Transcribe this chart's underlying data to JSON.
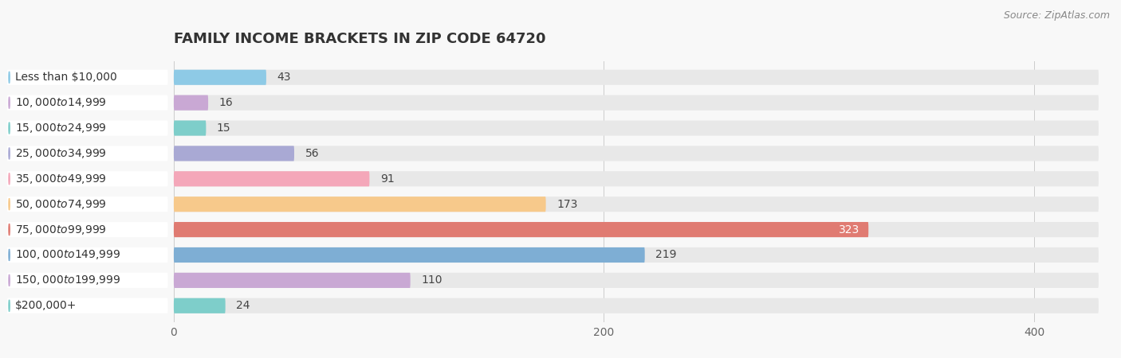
{
  "title": "Family Income Brackets in Zip Code 64720",
  "title_upper": "FAMILY INCOME BRACKETS IN ZIP CODE 64720",
  "source": "Source: ZipAtlas.com",
  "categories": [
    "Less than $10,000",
    "$10,000 to $14,999",
    "$15,000 to $24,999",
    "$25,000 to $34,999",
    "$35,000 to $49,999",
    "$50,000 to $74,999",
    "$75,000 to $99,999",
    "$100,000 to $149,999",
    "$150,000 to $199,999",
    "$200,000+"
  ],
  "values": [
    43,
    16,
    15,
    56,
    91,
    173,
    323,
    219,
    110,
    24
  ],
  "bar_colors": [
    "#8ecae6",
    "#c9a8d4",
    "#7ececa",
    "#a9a9d4",
    "#f4a7b9",
    "#f7c98b",
    "#e07b72",
    "#7eaed4",
    "#c9a8d4",
    "#7ececa"
  ],
  "background_color": "#f8f8f8",
  "row_bg_color": "#e8e8e8",
  "label_bg_color": "#ffffff",
  "xlim_max": 430,
  "x_tick_vals": [
    0,
    200,
    400
  ],
  "label_inside_threshold": 290,
  "title_fontsize": 13,
  "tick_fontsize": 10,
  "value_fontsize": 10,
  "category_fontsize": 10
}
